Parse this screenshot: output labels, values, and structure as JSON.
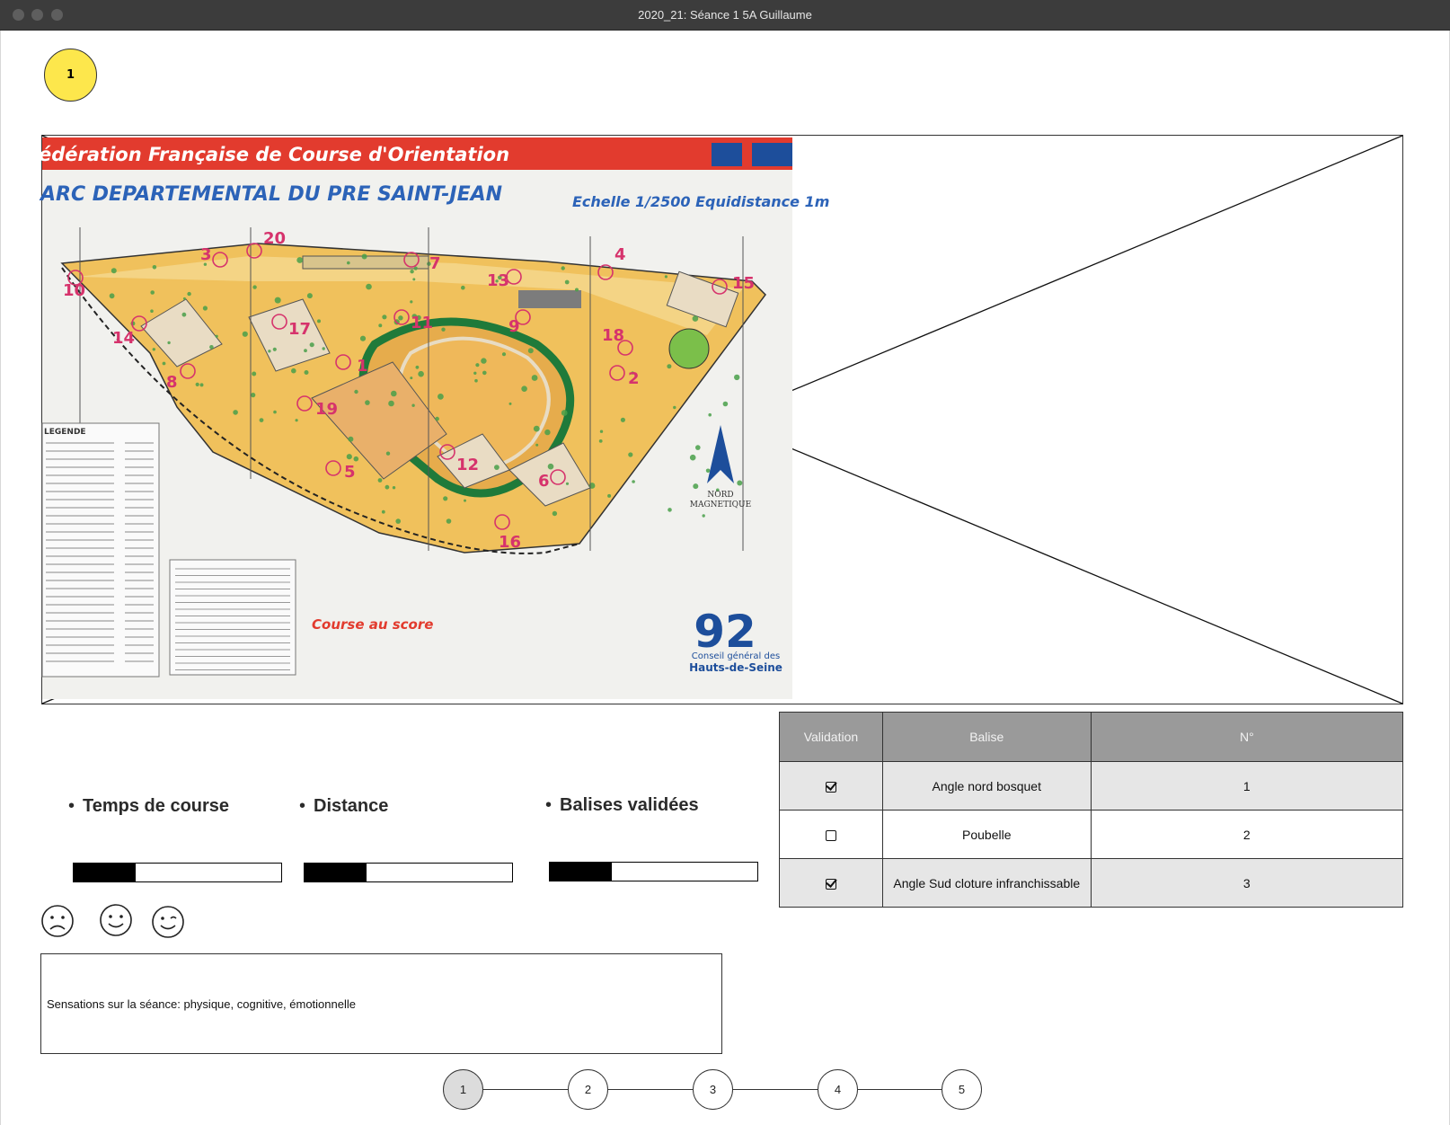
{
  "window": {
    "title": "2020_21: Séance 1 5A Guillaume"
  },
  "step_badge": "1",
  "map": {
    "banner": "édération Française de Course d'Orientation",
    "park_title": "ARC DEPARTEMENTAL DU PRE SAINT-JEAN",
    "scale": "Echelle 1/2500   Equidistance 1m",
    "legend_title": "LEGENDE",
    "north_label_1": "NORD",
    "north_label_2": "MAGNETIQUE",
    "course_label": "Course au score",
    "dept_number": "92",
    "council_1": "Conseil général des",
    "council_2": "Hauts-de-Seine",
    "controls": [
      "1",
      "2",
      "3",
      "4",
      "5",
      "6",
      "7",
      "8",
      "9",
      "10",
      "11",
      "12",
      "13",
      "14",
      "15",
      "16",
      "17",
      "18",
      "19",
      "20"
    ]
  },
  "stats": {
    "time_label": "Temps de course",
    "distance_label": "Distance",
    "balises_label": "Balises validées",
    "time_progress": 0.3,
    "distance_progress": 0.3,
    "balises_progress": 0.3
  },
  "moods": [
    "sad-face-icon",
    "smiling-face-icon",
    "winking-face-icon"
  ],
  "notes": {
    "placeholder": "Sensations sur la séance: physique, cognitive, émotionnelle"
  },
  "table": {
    "headers": [
      "Validation",
      "Balise",
      "N°"
    ],
    "rows": [
      {
        "validated": true,
        "balise": "Angle nord bosquet",
        "num": "1"
      },
      {
        "validated": false,
        "balise": "Poubelle",
        "num": "2"
      },
      {
        "validated": true,
        "balise": "Angle Sud cloture infranchissable",
        "num": "3"
      }
    ]
  },
  "stepper": [
    "1",
    "2",
    "3",
    "4",
    "5"
  ],
  "colors": {
    "badge": "#fde74c",
    "table_header": "#9a9a9a",
    "row_alt": "#e6e6e6",
    "banner_red": "#e23b2e",
    "control_magenta": "#d6336c"
  }
}
